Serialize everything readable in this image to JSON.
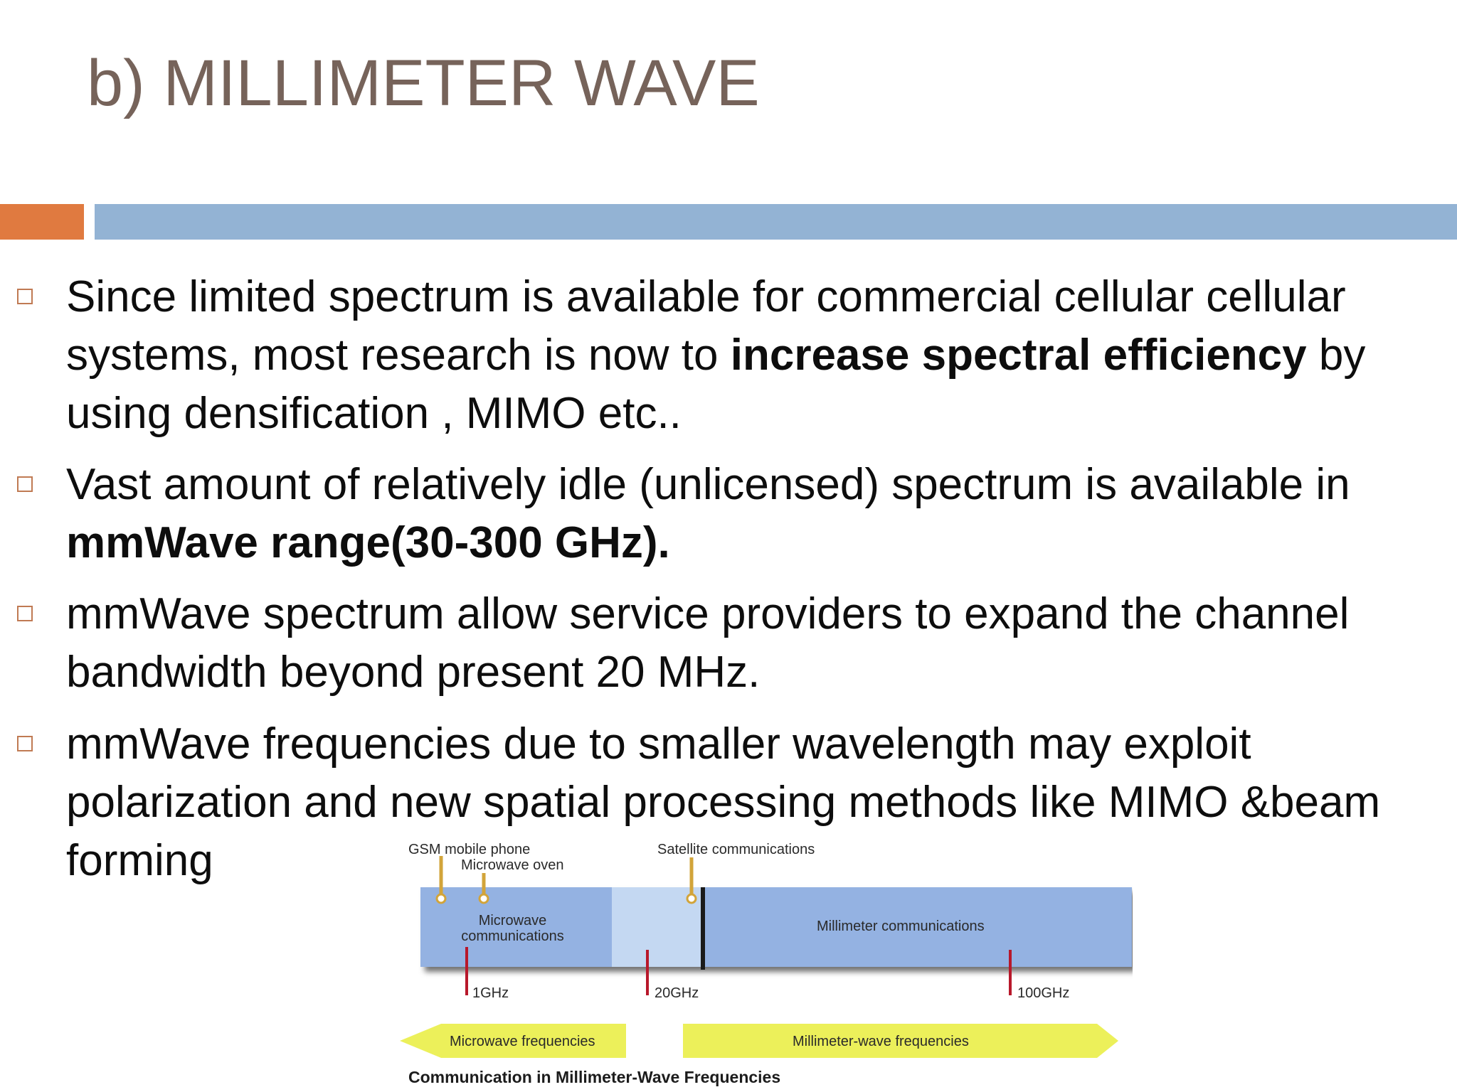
{
  "slide": {
    "title": "b) MILLIMETER WAVE",
    "colors": {
      "title": "#76635a",
      "accent_band": "#e07a40",
      "main_band": "#93b3d4",
      "bullet_marker": "#c07a53"
    },
    "bullets": [
      {
        "segments": [
          {
            "text": "Since limited spectrum is available  for commercial cellular cellular systems, most research is now to ",
            "bold": false
          },
          {
            "text": "increase spectral efficiency",
            "bold": true
          },
          {
            "text": "  by using densification , MIMO etc..",
            "bold": false
          }
        ]
      },
      {
        "segments": [
          {
            "text": "Vast amount of relatively idle (unlicensed) spectrum is available in ",
            "bold": false
          },
          {
            "text": "mmWave range(30-300 GHz).",
            "bold": true
          }
        ]
      },
      {
        "segments": [
          {
            "text": " mmWave spectrum allow service providers to expand the channel bandwidth beyond present 20 MHz.",
            "bold": false
          }
        ]
      },
      {
        "segments": [
          {
            "text": "mmWave frequencies due to smaller wavelength may exploit polarization and new spatial processing methods like MIMO &beam forming",
            "bold": false
          }
        ]
      }
    ],
    "figure": {
      "labels": {
        "gsm": "GSM mobile phone",
        "microwave_oven": "Microwave oven",
        "satellite": "Satellite communications",
        "microwave_comm": "Microwave communications",
        "millimeter_comm": "Millimeter communications",
        "f1": "1GHz",
        "f20": "20GHz",
        "f100": "100GHz",
        "microwave_freq": "Microwave frequencies",
        "mmwave_freq": "Millimeter-wave frequencies",
        "caption": "Communication in Millimeter-Wave Frequencies"
      },
      "colors": {
        "band": "#94b2e2",
        "gap": "#c4d8f2",
        "marker": "#b8182b",
        "pin": "#d2a43a",
        "arrow": "#ecf05a"
      }
    }
  }
}
